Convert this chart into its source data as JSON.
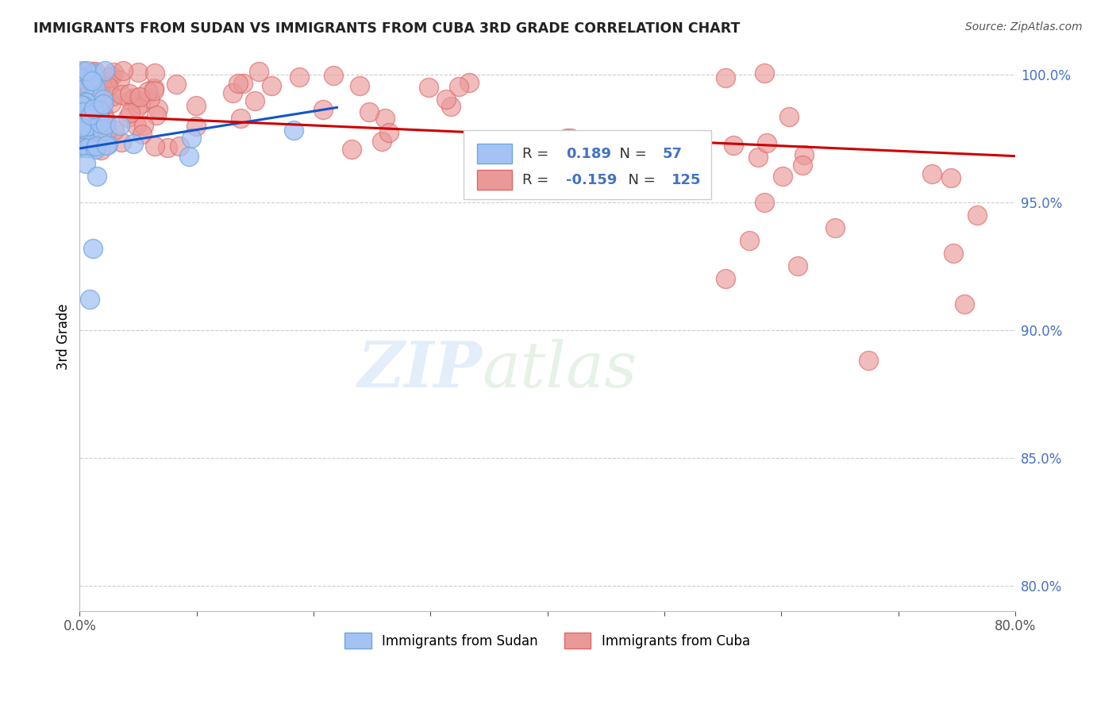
{
  "title": "IMMIGRANTS FROM SUDAN VS IMMIGRANTS FROM CUBA 3RD GRADE CORRELATION CHART",
  "source": "Source: ZipAtlas.com",
  "ylabel": "3rd Grade",
  "xlim": [
    0.0,
    0.8
  ],
  "ylim": [
    0.79,
    1.005
  ],
  "xtick_positions": [
    0.0,
    0.1,
    0.2,
    0.3,
    0.4,
    0.5,
    0.6,
    0.7,
    0.8
  ],
  "xticklabels": [
    "0.0%",
    "",
    "",
    "",
    "",
    "",
    "",
    "",
    "80.0%"
  ],
  "ytick_positions": [
    0.8,
    0.85,
    0.9,
    0.95,
    1.0
  ],
  "ytick_labels": [
    "80.0%",
    "85.0%",
    "90.0%",
    "95.0%",
    "100.0%"
  ],
  "sudan_color": "#a4c2f4",
  "cuba_color": "#ea9999",
  "sudan_edge": "#6fa8dc",
  "cuba_edge": "#e06666",
  "sudan_line_color": "#1155cc",
  "cuba_line_color": "#cc0000",
  "legend_val_sudan": "0.189",
  "legend_nval_sudan": "57",
  "legend_val_cuba": "-0.159",
  "legend_nval_cuba": "125",
  "watermark_zip": "ZIP",
  "watermark_atlas": "atlas",
  "sudan_line_x": [
    0.0,
    0.22
  ],
  "sudan_line_y": [
    0.971,
    0.987
  ],
  "cuba_line_x": [
    0.0,
    0.8
  ],
  "cuba_line_y": [
    0.984,
    0.968
  ]
}
